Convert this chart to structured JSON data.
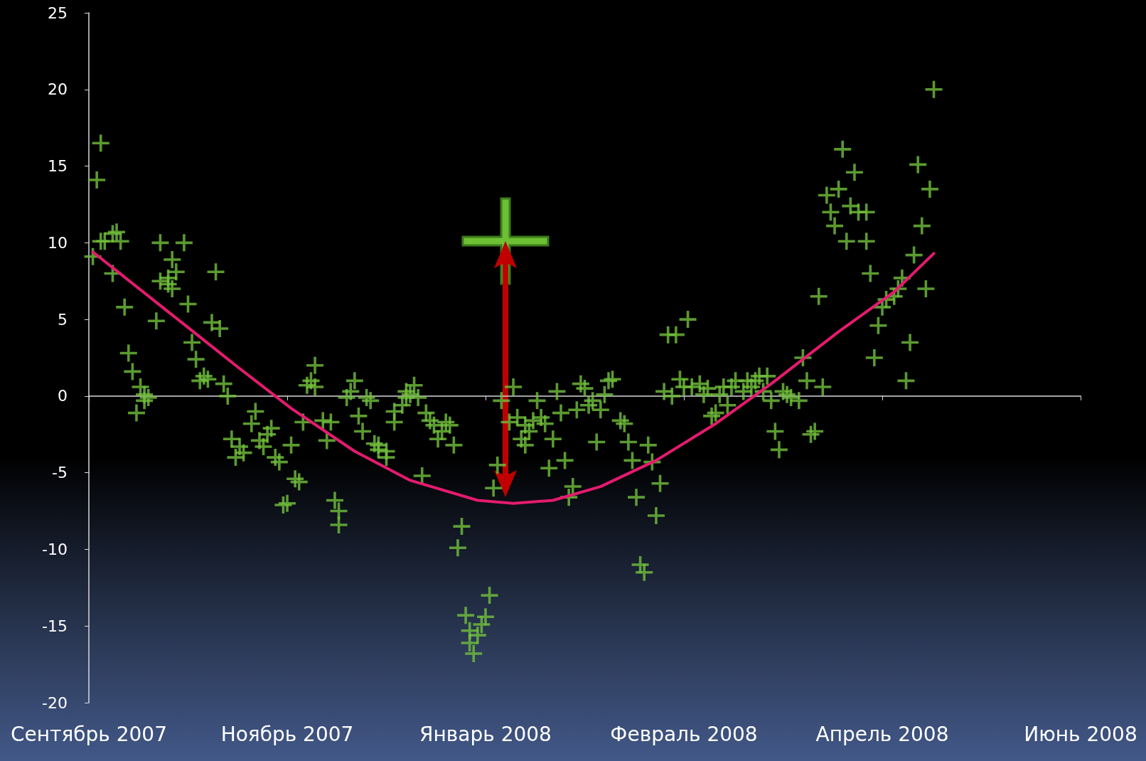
{
  "chart_data": {
    "type": "scatter",
    "xlim": [
      "2007-09-25",
      "2008-06-01"
    ],
    "xticks": [
      {
        "value": "2007-09-25",
        "label": "Сентябрь 2007"
      },
      {
        "value": "2007-11-14",
        "label": "Ноябрь 2007"
      },
      {
        "value": "2008-01-03",
        "label": "Январь 2008"
      },
      {
        "value": "2008-02-22",
        "label": "Февраль 2008"
      },
      {
        "value": "2008-04-12",
        "label": "Апрель 2008"
      },
      {
        "value": "2008-06-01",
        "label": "Июнь 2008"
      }
    ],
    "ylim": [
      -20,
      25
    ],
    "yticks": [
      -20,
      -15,
      -10,
      -5,
      0,
      5,
      10,
      15,
      20,
      25
    ],
    "series": [
      {
        "type": "scatter",
        "marker": "cross",
        "color": "#72c13c",
        "x": [
          "2007-09-26",
          "2007-09-27",
          "2007-09-28",
          "2007-09-28",
          "2007-09-29",
          "2007-10-01",
          "2007-10-02",
          "2007-10-03",
          "2007-10-01",
          "2007-10-04",
          "2007-10-05",
          "2007-10-06",
          "2007-10-07",
          "2007-10-08",
          "2007-10-09",
          "2007-10-10",
          "2007-10-09",
          "2007-10-12",
          "2007-10-13",
          "2007-10-13",
          "2007-10-15",
          "2007-10-15",
          "2007-10-16",
          "2007-10-17",
          "2007-10-16",
          "2007-10-19",
          "2007-10-20",
          "2007-10-21",
          "2007-10-22",
          "2007-10-23",
          "2007-10-24",
          "2007-10-25",
          "2007-10-27",
          "2007-10-26",
          "2007-10-28",
          "2007-10-29",
          "2007-10-30",
          "2007-10-31",
          "2007-11-01",
          "2007-11-02",
          "2007-11-03",
          "2007-11-05",
          "2007-11-06",
          "2007-11-07",
          "2007-11-08",
          "2007-11-09",
          "2007-11-10",
          "2007-11-11",
          "2007-11-12",
          "2007-11-13",
          "2007-11-14",
          "2007-11-15",
          "2007-11-16",
          "2007-11-17",
          "2007-11-18",
          "2007-11-19",
          "2007-11-20",
          "2007-11-21",
          "2007-11-21",
          "2007-11-23",
          "2007-11-24",
          "2007-11-25",
          "2007-11-26",
          "2007-11-27",
          "2007-11-27",
          "2007-11-29",
          "2007-11-30",
          "2007-12-01",
          "2007-12-02",
          "2007-12-03",
          "2007-12-04",
          "2007-12-05",
          "2007-12-06",
          "2007-12-07",
          "2007-12-07",
          "2007-12-09",
          "2007-12-09",
          "2007-12-11",
          "2007-12-11",
          "2007-12-13",
          "2007-12-14",
          "2007-12-14",
          "2007-12-15",
          "2007-12-16",
          "2007-12-17",
          "2007-12-18",
          "2007-12-19",
          "2007-12-20",
          "2007-12-21",
          "2007-12-22",
          "2007-12-23",
          "2007-12-24",
          "2007-12-25",
          "2007-12-26",
          "2007-12-27",
          "2007-12-28",
          "2007-12-29",
          "2007-12-30",
          "2007-12-30",
          "2007-12-31",
          "2008-01-01",
          "2008-01-02",
          "2008-01-03",
          "2008-01-04",
          "2008-01-05",
          "2008-01-06",
          "2008-01-07",
          "2008-01-08",
          "2008-01-09",
          "2008-01-10",
          "2008-01-11",
          "2008-01-12",
          "2008-01-13",
          "2008-01-13",
          "2008-01-14",
          "2008-01-15",
          "2008-01-16",
          "2008-01-17",
          "2008-01-18",
          "2008-01-19",
          "2008-01-20",
          "2008-01-21",
          "2008-01-22",
          "2008-01-23",
          "2008-01-24",
          "2008-01-25",
          "2008-01-26",
          "2008-01-27",
          "2008-01-28",
          "2008-01-29",
          "2008-01-30",
          "2008-01-31",
          "2008-02-01",
          "2008-02-02",
          "2008-02-03",
          "2008-02-04",
          "2008-02-06",
          "2008-02-07",
          "2008-02-08",
          "2008-02-09",
          "2008-02-10",
          "2008-02-11",
          "2008-02-12",
          "2008-02-13",
          "2008-02-14",
          "2008-02-15",
          "2008-02-16",
          "2008-02-17",
          "2008-02-18",
          "2008-02-19",
          "2008-02-20",
          "2008-02-21",
          "2008-02-22",
          "2008-02-23",
          "2008-02-24",
          "2008-02-26",
          "2008-02-27",
          "2008-02-28",
          "2008-02-29",
          "2008-03-01",
          "2008-03-02",
          "2008-03-03",
          "2008-03-04",
          "2008-03-05",
          "2008-03-06",
          "2008-03-08",
          "2008-03-09",
          "2008-03-10",
          "2008-03-11",
          "2008-03-12",
          "2008-03-13",
          "2008-03-14",
          "2008-03-15",
          "2008-03-16",
          "2008-03-17",
          "2008-03-18",
          "2008-03-19",
          "2008-03-20",
          "2008-03-22",
          "2008-03-23",
          "2008-03-24",
          "2008-03-25",
          "2008-03-26",
          "2008-03-27",
          "2008-03-28",
          "2008-03-29",
          "2008-03-30",
          "2008-03-31",
          "2008-04-01",
          "2008-04-02",
          "2008-04-03",
          "2008-04-04",
          "2008-04-05",
          "2008-04-06",
          "2008-04-08",
          "2008-04-08",
          "2008-04-09",
          "2008-04-10",
          "2008-04-11",
          "2008-04-12",
          "2008-04-13",
          "2008-04-15",
          "2008-04-16",
          "2008-04-17",
          "2008-04-18",
          "2008-04-19",
          "2008-04-20",
          "2008-04-21",
          "2008-04-22",
          "2008-04-23",
          "2008-04-24",
          "2008-04-25"
        ],
        "values": [
          9.1,
          14.1,
          16.5,
          10.1,
          10.1,
          10.6,
          10.7,
          10.1,
          8.0,
          5.8,
          2.8,
          1.6,
          -1.1,
          0.6,
          0.1,
          -0.1,
          -0.3,
          4.9,
          10.0,
          7.5,
          7.3,
          7.7,
          8.9,
          8.1,
          7.0,
          10.0,
          6.0,
          3.5,
          2.4,
          1.0,
          1.3,
          1.1,
          8.1,
          4.8,
          4.4,
          0.8,
          0.0,
          -2.8,
          -4.0,
          -3.3,
          -3.7,
          -1.8,
          -1.0,
          -2.9,
          -3.3,
          -2.5,
          -2.1,
          -4.0,
          -4.3,
          -7.1,
          -7.0,
          -3.2,
          -5.4,
          -5.6,
          -1.7,
          0.7,
          1.0,
          2.0,
          0.6,
          -1.6,
          -2.9,
          -1.7,
          -6.8,
          -8.4,
          -7.5,
          -0.1,
          0.3,
          1.0,
          -1.3,
          -2.3,
          -0.1,
          -0.3,
          -3.1,
          -3.2,
          -3.5,
          -4.0,
          -3.6,
          -1.0,
          -1.7,
          -0.6,
          -0.1,
          0.3,
          0.1,
          0.7,
          -0.1,
          -5.2,
          -1.1,
          -1.6,
          -1.9,
          -2.8,
          -2.3,
          -1.7,
          -1.9,
          -3.2,
          -9.9,
          -8.5,
          -14.3,
          -15.3,
          -16.1,
          -16.8,
          -15.6,
          -14.9,
          -14.4,
          -13.0,
          -6.0,
          -4.5,
          -0.3,
          null,
          -1.7,
          0.6,
          -1.4,
          -2.8,
          -1.9,
          -3.2,
          -2.3,
          -1.6,
          -0.3,
          -1.4,
          -1.8,
          -4.7,
          -2.8,
          0.3,
          -1.1,
          -4.2,
          -6.6,
          -5.9,
          -0.9,
          0.8,
          0.5,
          -0.6,
          -0.3,
          -3.0,
          -0.9,
          0.1,
          1.0,
          1.1,
          -1.6,
          -1.8,
          -3.0,
          -4.2,
          -6.6,
          -11.0,
          -11.5,
          -3.2,
          -4.3,
          -7.8,
          -5.7,
          0.3,
          4.0,
          0.0,
          4.0,
          1.1,
          0.6,
          5.0,
          0.6,
          0.8,
          0.1,
          0.5,
          -1.3,
          -1.1,
          0.1,
          0.6,
          -0.6,
          0.6,
          1.0,
          0.3,
          1.0,
          0.6,
          1.0,
          1.3,
          0.3,
          1.3,
          -0.3,
          -2.3,
          -3.5,
          0.3,
          0.1,
          -0.1,
          -0.3,
          2.5,
          1.0,
          -2.5,
          -2.3,
          6.5,
          0.6,
          13.1,
          12.0,
          11.1,
          13.5,
          16.1,
          10.1,
          12.4,
          14.6,
          12.0,
          12.0,
          10.1,
          8.0,
          2.5,
          4.6,
          5.8,
          6.3,
          6.5,
          7.0,
          7.7,
          1.0,
          3.5,
          9.2,
          15.1,
          11.1,
          7.0,
          13.5,
          20.0
        ]
      },
      {
        "type": "line",
        "marker": "none",
        "color": "#e41b6e",
        "x": [
          "2007-09-26",
          "2007-10-15",
          "2007-11-01",
          "2007-11-15",
          "2007-12-01",
          "2007-12-15",
          "2008-01-01",
          "2008-01-10",
          "2008-01-20",
          "2008-02-01",
          "2008-02-15",
          "2008-03-01",
          "2008-03-15",
          "2008-04-01",
          "2008-04-15",
          "2008-04-25"
        ],
        "values": [
          9.4,
          5.5,
          2.0,
          -0.8,
          -3.6,
          -5.5,
          -6.8,
          -7.0,
          -6.8,
          -5.9,
          -4.2,
          -1.8,
          0.8,
          4.2,
          6.8,
          9.3
        ]
      }
    ]
  }
}
